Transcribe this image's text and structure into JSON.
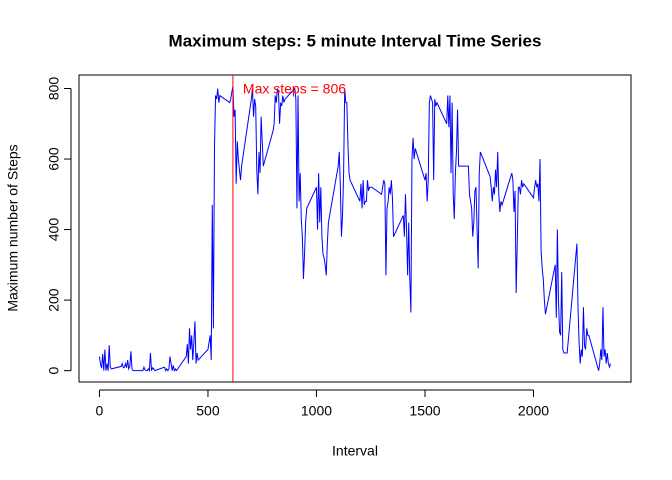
{
  "chart_data": {
    "type": "line",
    "title": "Maximum steps: 5 minute Interval Time Series",
    "x_label": "Interval",
    "y_label": "Maximum number of Steps",
    "annotation": "Max steps =  806",
    "annotation_color": "#ff0000",
    "vline": 615,
    "vline_color": "#ff0000",
    "xlim": [
      -94.2,
      2449.2
    ],
    "ylim": [
      -32.24,
      838.24
    ],
    "xticks": [
      0,
      500,
      1000,
      1500,
      2000
    ],
    "yticks": [
      0,
      200,
      400,
      600,
      800
    ],
    "series": [
      {
        "color": "#0000ff",
        "x": [
          0,
          5,
          10,
          15,
          20,
          25,
          30,
          35,
          40,
          45,
          50,
          55,
          100,
          105,
          110,
          115,
          120,
          125,
          130,
          135,
          140,
          145,
          150,
          155,
          200,
          205,
          210,
          215,
          220,
          225,
          230,
          235,
          240,
          245,
          250,
          255,
          300,
          305,
          310,
          315,
          320,
          325,
          330,
          335,
          340,
          345,
          350,
          355,
          400,
          405,
          410,
          415,
          420,
          425,
          430,
          435,
          440,
          445,
          450,
          455,
          500,
          505,
          510,
          515,
          520,
          525,
          530,
          535,
          540,
          545,
          550,
          555,
          600,
          605,
          610,
          615,
          620,
          625,
          630,
          635,
          640,
          645,
          650,
          655,
          700,
          705,
          710,
          715,
          720,
          725,
          730,
          735,
          740,
          745,
          750,
          755,
          800,
          805,
          810,
          815,
          820,
          825,
          830,
          835,
          840,
          845,
          850,
          855,
          900,
          905,
          910,
          915,
          920,
          925,
          930,
          935,
          940,
          945,
          950,
          955,
          1000,
          1005,
          1010,
          1015,
          1020,
          1025,
          1030,
          1035,
          1040,
          1045,
          1050,
          1055,
          1100,
          1105,
          1110,
          1115,
          1120,
          1125,
          1130,
          1135,
          1140,
          1145,
          1150,
          1155,
          1200,
          1205,
          1210,
          1215,
          1220,
          1225,
          1230,
          1235,
          1240,
          1245,
          1250,
          1255,
          1300,
          1305,
          1310,
          1315,
          1320,
          1325,
          1330,
          1335,
          1340,
          1345,
          1350,
          1355,
          1400,
          1405,
          1410,
          1415,
          1420,
          1425,
          1430,
          1435,
          1440,
          1445,
          1450,
          1455,
          1500,
          1505,
          1510,
          1515,
          1520,
          1525,
          1530,
          1535,
          1540,
          1545,
          1550,
          1555,
          1600,
          1605,
          1610,
          1615,
          1620,
          1625,
          1630,
          1635,
          1640,
          1645,
          1650,
          1655,
          1700,
          1705,
          1710,
          1715,
          1720,
          1725,
          1730,
          1735,
          1740,
          1745,
          1750,
          1755,
          1800,
          1805,
          1810,
          1815,
          1820,
          1825,
          1830,
          1835,
          1840,
          1845,
          1850,
          1855,
          1900,
          1905,
          1910,
          1915,
          1920,
          1925,
          1930,
          1935,
          1940,
          1945,
          1950,
          1955,
          2000,
          2005,
          2010,
          2015,
          2020,
          2025,
          2030,
          2035,
          2040,
          2045,
          2050,
          2055,
          2100,
          2105,
          2110,
          2115,
          2120,
          2125,
          2130,
          2135,
          2140,
          2145,
          2150,
          2155,
          2200,
          2205,
          2210,
          2215,
          2220,
          2225,
          2230,
          2235,
          2240,
          2245,
          2250,
          2255,
          2300,
          2305,
          2310,
          2315,
          2320,
          2325,
          2330,
          2335,
          2340,
          2345,
          2350,
          2355
        ],
        "values": [
          40,
          18,
          7,
          47,
          0,
          60,
          0,
          20,
          0,
          72,
          10,
          5,
          12,
          20,
          8,
          10,
          20,
          8,
          30,
          5,
          12,
          55,
          5,
          0,
          0,
          10,
          2,
          0,
          0,
          5,
          0,
          50,
          0,
          8,
          5,
          0,
          10,
          0,
          5,
          0,
          5,
          40,
          20,
          0,
          15,
          0,
          5,
          0,
          40,
          75,
          20,
          120,
          60,
          100,
          30,
          80,
          140,
          20,
          50,
          30,
          60,
          80,
          100,
          30,
          470,
          120,
          630,
          780,
          770,
          800,
          760,
          780,
          760,
          770,
          790,
          806,
          720,
          740,
          530,
          650,
          600,
          570,
          540,
          580,
          770,
          800,
          720,
          770,
          750,
          570,
          500,
          620,
          560,
          720,
          650,
          580,
          680,
          700,
          780,
          760,
          800,
          790,
          700,
          760,
          750,
          780,
          760,
          770,
          800,
          770,
          460,
          780,
          480,
          560,
          430,
          380,
          260,
          330,
          420,
          460,
          520,
          400,
          560,
          420,
          520,
          380,
          330,
          320,
          300,
          270,
          360,
          420,
          580,
          620,
          520,
          380,
          440,
          560,
          800,
          760,
          760,
          640,
          560,
          540,
          480,
          530,
          460,
          540,
          470,
          480,
          480,
          540,
          510,
          520,
          520,
          520,
          500,
          520,
          540,
          530,
          270,
          460,
          480,
          520,
          500,
          540,
          490,
          380,
          440,
          380,
          500,
          400,
          270,
          420,
          260,
          165,
          600,
          660,
          600,
          630,
          540,
          560,
          480,
          540,
          760,
          780,
          770,
          760,
          540,
          770,
          750,
          760,
          700,
          780,
          690,
          780,
          560,
          760,
          500,
          430,
          560,
          620,
          740,
          580,
          580,
          500,
          480,
          460,
          380,
          420,
          510,
          520,
          400,
          290,
          560,
          620,
          550,
          520,
          480,
          520,
          500,
          570,
          520,
          620,
          500,
          450,
          480,
          470,
          560,
          540,
          450,
          510,
          220,
          360,
          520,
          520,
          500,
          540,
          520,
          530,
          490,
          520,
          540,
          520,
          530,
          480,
          600,
          340,
          290,
          260,
          200,
          160,
          300,
          150,
          400,
          200,
          110,
          100,
          280,
          60,
          50,
          50,
          50,
          50,
          360,
          180,
          80,
          20,
          60,
          40,
          180,
          70,
          60,
          120,
          100,
          100,
          0,
          20,
          60,
          30,
          180,
          40,
          60,
          20,
          50,
          20,
          10,
          20
        ]
      }
    ]
  }
}
